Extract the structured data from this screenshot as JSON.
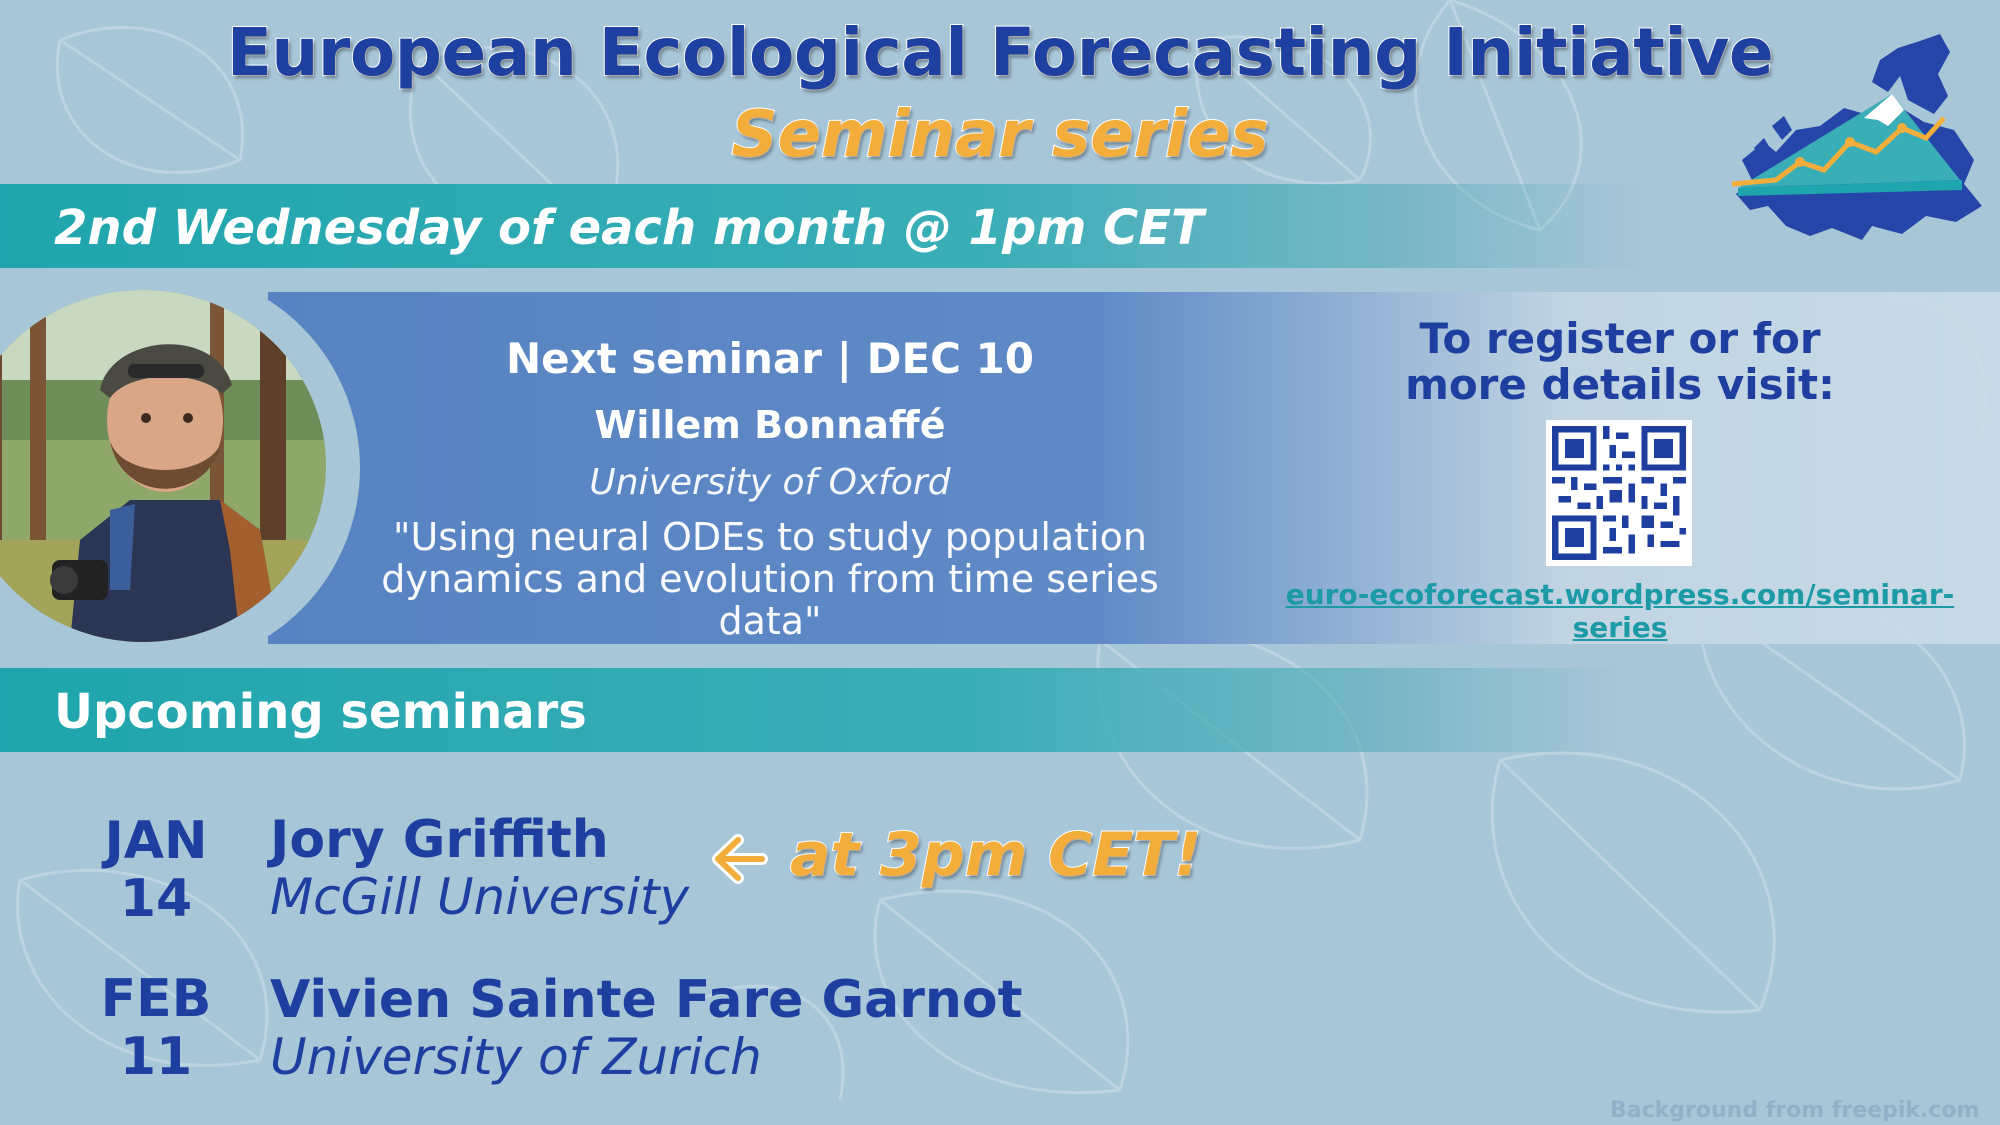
{
  "header": {
    "title": "European Ecological Forecasting Initiative",
    "subtitle": "Seminar series",
    "logo": "europe-map-chart-logo"
  },
  "schedule": {
    "text": "2nd Wednesday of each month @ 1pm CET"
  },
  "next_seminar": {
    "heading": "Next seminar | DEC 10",
    "speaker": "Willem Bonnaffé",
    "affiliation": "University of Oxford",
    "talk_line1": "\"Using neural ODEs to study population",
    "talk_line2": "dynamics and evolution from time series data\"",
    "photo": "speaker-photo"
  },
  "register": {
    "line1": "To register or for",
    "line2": "more details visit:",
    "qr": "qr-code",
    "link": "euro-ecoforecast.wordpress.com/seminar-series"
  },
  "upcoming": {
    "heading": "Upcoming seminars",
    "items": [
      {
        "month": "JAN",
        "day": "14",
        "speaker": "Jory Griffith",
        "affiliation": "McGill University",
        "note": "at 3pm CET!"
      },
      {
        "month": "FEB",
        "day": "11",
        "speaker": "Vivien Sainte Fare Garnot",
        "affiliation": "University of Zurich"
      }
    ]
  },
  "credit": "Background from  freepik.com",
  "colors": {
    "navy": "#1e3fa0",
    "teal": "#1fa5ad",
    "orange": "#f3ad3a",
    "background": "#a7c6d8"
  }
}
